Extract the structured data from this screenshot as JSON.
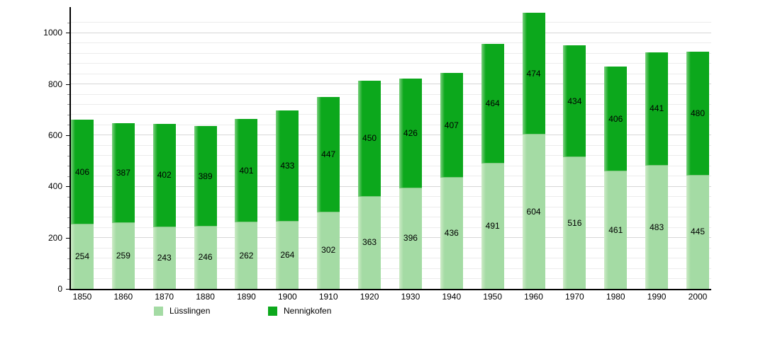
{
  "chart_data": {
    "type": "bar",
    "stacked": true,
    "title": "",
    "xlabel": "",
    "ylabel": "",
    "categories": [
      "1850",
      "1860",
      "1870",
      "1880",
      "1890",
      "1900",
      "1910",
      "1920",
      "1930",
      "1940",
      "1950",
      "1960",
      "1970",
      "1980",
      "1990",
      "2000"
    ],
    "series": [
      {
        "name": "Lüsslingen",
        "color": "#a4dba4",
        "edge_color": "#7cc77c",
        "values": [
          254,
          259,
          243,
          246,
          262,
          264,
          302,
          363,
          396,
          436,
          491,
          604,
          516,
          461,
          483,
          445
        ]
      },
      {
        "name": "Nennigkofen",
        "color": "#0ca81c",
        "edge_color": "#0ca81c",
        "values": [
          406,
          387,
          402,
          389,
          401,
          433,
          447,
          450,
          426,
          407,
          464,
          474,
          434,
          406,
          441,
          480
        ]
      }
    ],
    "ylim": [
      0,
      1100
    ],
    "yticks": [
      0,
      200,
      400,
      600,
      800,
      1000
    ],
    "minor_tick_step": 40,
    "grid": "on",
    "value_labels": "on",
    "legend_position": "bottom",
    "axis_color": "#000000",
    "background_color": "#ffffff"
  }
}
